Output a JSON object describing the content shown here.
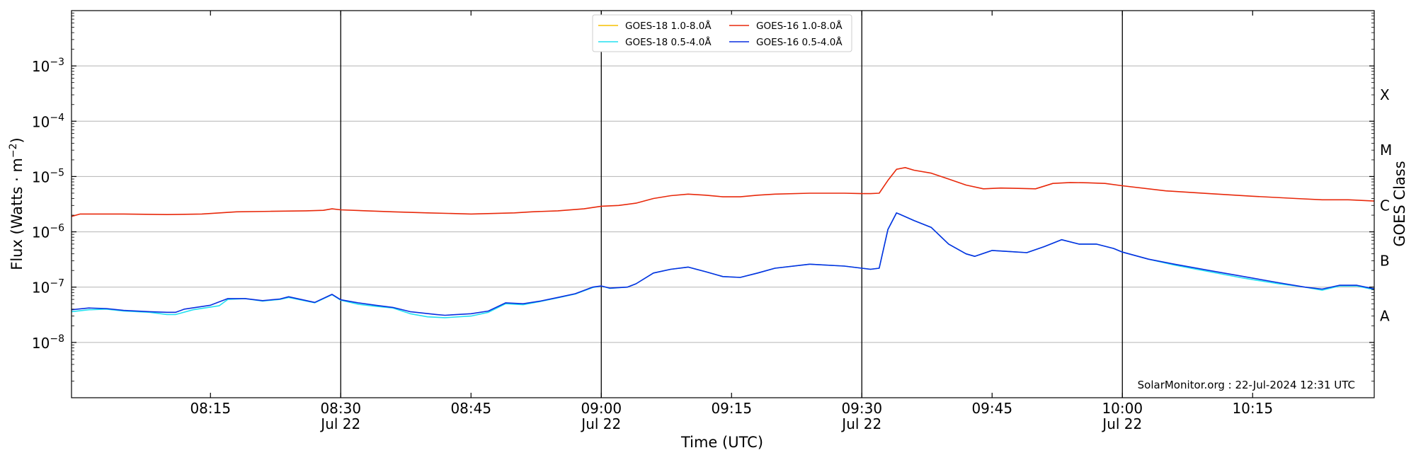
{
  "chart_data": {
    "type": "line",
    "title": "",
    "xlabel": "Time (UTC)",
    "ylabel": "Flux (Watts · m",
    "ylabel_sup": "−2",
    "ylabel_close": ")",
    "y2label": "GOES Class",
    "yscale": "log",
    "xlim": [
      "07:59",
      "10:29"
    ],
    "ylim": [
      1e-09,
      0.01
    ],
    "grid": "horizontal at decades",
    "legend_placement": "top-center",
    "credit": "SolarMonitor.org : 22-Jul-2024 12:31 UTC",
    "y_ticks": [
      {
        "value": 1e-08,
        "base": "10",
        "exp": "−8"
      },
      {
        "value": 1e-07,
        "base": "10",
        "exp": "−7"
      },
      {
        "value": 1e-06,
        "base": "10",
        "exp": "−6"
      },
      {
        "value": 1e-05,
        "base": "10",
        "exp": "−5"
      },
      {
        "value": 0.0001,
        "base": "10",
        "exp": "−4"
      },
      {
        "value": 0.001,
        "base": "10",
        "exp": "−3"
      }
    ],
    "class_labels": [
      {
        "label": "A",
        "value": 3e-08
      },
      {
        "label": "B",
        "value": 3e-07
      },
      {
        "label": "C",
        "value": 3e-06
      },
      {
        "label": "M",
        "value": 3e-05
      },
      {
        "label": "X",
        "value": 0.0003
      }
    ],
    "x_ticks": [
      {
        "time": "08:15",
        "date": ""
      },
      {
        "time": "08:30",
        "date": "Jul 22"
      },
      {
        "time": "08:45",
        "date": ""
      },
      {
        "time": "09:00",
        "date": "Jul 22"
      },
      {
        "time": "09:15",
        "date": ""
      },
      {
        "time": "09:30",
        "date": "Jul 22"
      },
      {
        "time": "09:45",
        "date": ""
      },
      {
        "time": "10:00",
        "date": "Jul 22"
      },
      {
        "time": "10:15",
        "date": ""
      }
    ],
    "vlines": [
      "08:30",
      "09:00",
      "09:30",
      "10:00"
    ],
    "series": [
      {
        "name": "GOES-16 1.0-8.0Å",
        "color": "#e8290b",
        "points": [
          [
            "07:59",
            1.9e-06
          ],
          [
            "08:00",
            2.1e-06
          ],
          [
            "08:05",
            2.1e-06
          ],
          [
            "08:10",
            2.05e-06
          ],
          [
            "08:14",
            2.1e-06
          ],
          [
            "08:18",
            2.3e-06
          ],
          [
            "08:22",
            2.35e-06
          ],
          [
            "08:26",
            2.4e-06
          ],
          [
            "08:28",
            2.45e-06
          ],
          [
            "08:29",
            2.6e-06
          ],
          [
            "08:30",
            2.5e-06
          ],
          [
            "08:33",
            2.4e-06
          ],
          [
            "08:36",
            2.3e-06
          ],
          [
            "08:40",
            2.2e-06
          ],
          [
            "08:45",
            2.1e-06
          ],
          [
            "08:50",
            2.2e-06
          ],
          [
            "08:52",
            2.3e-06
          ],
          [
            "08:55",
            2.4e-06
          ],
          [
            "08:58",
            2.6e-06
          ],
          [
            "09:00",
            2.9e-06
          ],
          [
            "09:02",
            3e-06
          ],
          [
            "09:04",
            3.3e-06
          ],
          [
            "09:06",
            4e-06
          ],
          [
            "09:08",
            4.5e-06
          ],
          [
            "09:10",
            4.8e-06
          ],
          [
            "09:12",
            4.6e-06
          ],
          [
            "09:14",
            4.3e-06
          ],
          [
            "09:16",
            4.3e-06
          ],
          [
            "09:18",
            4.6e-06
          ],
          [
            "09:20",
            4.8e-06
          ],
          [
            "09:24",
            5e-06
          ],
          [
            "09:28",
            5e-06
          ],
          [
            "09:30",
            4.9e-06
          ],
          [
            "09:31",
            4.9e-06
          ],
          [
            "09:32",
            5e-06
          ],
          [
            "09:33",
            8.5e-06
          ],
          [
            "09:34",
            1.35e-05
          ],
          [
            "09:35",
            1.45e-05
          ],
          [
            "09:36",
            1.3e-05
          ],
          [
            "09:38",
            1.15e-05
          ],
          [
            "09:40",
            9e-06
          ],
          [
            "09:42",
            7e-06
          ],
          [
            "09:44",
            6e-06
          ],
          [
            "09:46",
            6.2e-06
          ],
          [
            "09:48",
            6.1e-06
          ],
          [
            "09:50",
            6e-06
          ],
          [
            "09:52",
            7.5e-06
          ],
          [
            "09:54",
            7.8e-06
          ],
          [
            "09:56",
            7.7e-06
          ],
          [
            "09:58",
            7.5e-06
          ],
          [
            "10:00",
            6.8e-06
          ],
          [
            "10:05",
            5.5e-06
          ],
          [
            "10:10",
            4.9e-06
          ],
          [
            "10:15",
            4.4e-06
          ],
          [
            "10:20",
            4e-06
          ],
          [
            "10:23",
            3.8e-06
          ],
          [
            "10:26",
            3.8e-06
          ],
          [
            "10:29",
            3.6e-06
          ]
        ]
      },
      {
        "name": "GOES-18 0.5-4.0Å",
        "color": "#22e0f0",
        "points": [
          [
            "07:59",
            3.6e-08
          ],
          [
            "08:01",
            3.9e-08
          ],
          [
            "08:03",
            4e-08
          ],
          [
            "08:05",
            3.7e-08
          ],
          [
            "08:08",
            3.5e-08
          ],
          [
            "08:10",
            3.2e-08
          ],
          [
            "08:11",
            3.2e-08
          ],
          [
            "08:13",
            3.9e-08
          ],
          [
            "08:16",
            4.6e-08
          ],
          [
            "08:17",
            6e-08
          ],
          [
            "08:19",
            6.2e-08
          ],
          [
            "08:21",
            5.6e-08
          ],
          [
            "08:23",
            6e-08
          ],
          [
            "08:24",
            6.5e-08
          ],
          [
            "08:27",
            5.2e-08
          ],
          [
            "08:29",
            7.3e-08
          ],
          [
            "08:30",
            5.8e-08
          ],
          [
            "08:32",
            4.9e-08
          ],
          [
            "08:34",
            4.5e-08
          ],
          [
            "08:36",
            4.2e-08
          ],
          [
            "08:38",
            3.3e-08
          ],
          [
            "08:40",
            2.9e-08
          ],
          [
            "08:42",
            2.8e-08
          ],
          [
            "08:45",
            3e-08
          ],
          [
            "08:47",
            3.5e-08
          ],
          [
            "08:49",
            5e-08
          ],
          [
            "08:51",
            4.8e-08
          ],
          [
            "08:53",
            5.5e-08
          ],
          [
            "08:55",
            6.4e-08
          ],
          [
            "08:57",
            7.5e-08
          ],
          [
            "08:59",
            9.8e-08
          ],
          [
            "09:00",
            1.05e-07
          ],
          [
            "09:01",
            9.5e-08
          ],
          [
            "09:03",
            1e-07
          ],
          [
            "09:04",
            1.15e-07
          ],
          [
            "09:06",
            1.8e-07
          ],
          [
            "09:08",
            2.1e-07
          ],
          [
            "09:10",
            2.3e-07
          ],
          [
            "09:12",
            1.9e-07
          ],
          [
            "09:14",
            1.55e-07
          ],
          [
            "09:16",
            1.5e-07
          ],
          [
            "09:18",
            1.8e-07
          ],
          [
            "09:20",
            2.2e-07
          ],
          [
            "09:24",
            2.6e-07
          ],
          [
            "09:28",
            2.4e-07
          ],
          [
            "09:31",
            2.1e-07
          ],
          [
            "09:32",
            2.2e-07
          ],
          [
            "09:33",
            1.1e-06
          ],
          [
            "09:34",
            2.2e-06
          ],
          [
            "09:36",
            1.6e-06
          ],
          [
            "09:38",
            1.2e-06
          ],
          [
            "09:40",
            6e-07
          ],
          [
            "09:42",
            4e-07
          ],
          [
            "09:43",
            3.6e-07
          ],
          [
            "09:45",
            4.6e-07
          ],
          [
            "09:47",
            4.4e-07
          ],
          [
            "09:49",
            4.2e-07
          ],
          [
            "09:51",
            5.4e-07
          ],
          [
            "09:53",
            7.2e-07
          ],
          [
            "09:55",
            6e-07
          ],
          [
            "09:57",
            6e-07
          ],
          [
            "09:59",
            5e-07
          ],
          [
            "10:00",
            4.3e-07
          ],
          [
            "10:03",
            3.2e-07
          ],
          [
            "10:06",
            2.5e-07
          ],
          [
            "10:10",
            1.9e-07
          ],
          [
            "10:14",
            1.45e-07
          ],
          [
            "10:18",
            1.15e-07
          ],
          [
            "10:21",
            1e-07
          ],
          [
            "10:23",
            8.8e-08
          ],
          [
            "10:25",
            1.05e-07
          ],
          [
            "10:27",
            1.05e-07
          ],
          [
            "10:29",
            9e-08
          ]
        ]
      },
      {
        "name": "GOES-16 0.5-4.0Å",
        "color": "#0a2fe0",
        "points": [
          [
            "07:59",
            3.9e-08
          ],
          [
            "08:01",
            4.2e-08
          ],
          [
            "08:03",
            4.1e-08
          ],
          [
            "08:05",
            3.8e-08
          ],
          [
            "08:08",
            3.6e-08
          ],
          [
            "08:10",
            3.5e-08
          ],
          [
            "08:11",
            3.5e-08
          ],
          [
            "08:12",
            4e-08
          ],
          [
            "08:15",
            4.7e-08
          ],
          [
            "08:17",
            6.2e-08
          ],
          [
            "08:19",
            6.2e-08
          ],
          [
            "08:21",
            5.7e-08
          ],
          [
            "08:23",
            6.1e-08
          ],
          [
            "08:24",
            6.7e-08
          ],
          [
            "08:27",
            5.3e-08
          ],
          [
            "08:29",
            7.4e-08
          ],
          [
            "08:30",
            5.9e-08
          ],
          [
            "08:32",
            5.2e-08
          ],
          [
            "08:34",
            4.7e-08
          ],
          [
            "08:36",
            4.3e-08
          ],
          [
            "08:38",
            3.6e-08
          ],
          [
            "08:41",
            3.2e-08
          ],
          [
            "08:42",
            3.1e-08
          ],
          [
            "08:45",
            3.3e-08
          ],
          [
            "08:47",
            3.7e-08
          ],
          [
            "08:49",
            5.2e-08
          ],
          [
            "08:51",
            5e-08
          ],
          [
            "08:53",
            5.6e-08
          ],
          [
            "08:55",
            6.5e-08
          ],
          [
            "08:57",
            7.6e-08
          ],
          [
            "08:59",
            1e-07
          ],
          [
            "09:00",
            1.05e-07
          ],
          [
            "09:01",
            9.6e-08
          ],
          [
            "09:03",
            1e-07
          ],
          [
            "09:04",
            1.15e-07
          ],
          [
            "09:06",
            1.8e-07
          ],
          [
            "09:08",
            2.1e-07
          ],
          [
            "09:10",
            2.3e-07
          ],
          [
            "09:12",
            1.9e-07
          ],
          [
            "09:14",
            1.55e-07
          ],
          [
            "09:16",
            1.5e-07
          ],
          [
            "09:18",
            1.8e-07
          ],
          [
            "09:20",
            2.2e-07
          ],
          [
            "09:24",
            2.6e-07
          ],
          [
            "09:28",
            2.4e-07
          ],
          [
            "09:31",
            2.1e-07
          ],
          [
            "09:32",
            2.2e-07
          ],
          [
            "09:33",
            1.1e-06
          ],
          [
            "09:34",
            2.2e-06
          ],
          [
            "09:36",
            1.6e-06
          ],
          [
            "09:38",
            1.2e-06
          ],
          [
            "09:40",
            6e-07
          ],
          [
            "09:42",
            4e-07
          ],
          [
            "09:43",
            3.6e-07
          ],
          [
            "09:45",
            4.6e-07
          ],
          [
            "09:47",
            4.4e-07
          ],
          [
            "09:49",
            4.2e-07
          ],
          [
            "09:51",
            5.4e-07
          ],
          [
            "09:53",
            7.2e-07
          ],
          [
            "09:55",
            6e-07
          ],
          [
            "09:57",
            6e-07
          ],
          [
            "09:59",
            5e-07
          ],
          [
            "10:00",
            4.3e-07
          ],
          [
            "10:03",
            3.2e-07
          ],
          [
            "10:06",
            2.6e-07
          ],
          [
            "10:10",
            2e-07
          ],
          [
            "10:14",
            1.55e-07
          ],
          [
            "10:18",
            1.2e-07
          ],
          [
            "10:21",
            1e-07
          ],
          [
            "10:23",
            9.2e-08
          ],
          [
            "10:25",
            1.08e-07
          ],
          [
            "10:27",
            1.08e-07
          ],
          [
            "10:29",
            9.3e-08
          ]
        ]
      },
      {
        "name": "GOES-18 1.0-8.0Å",
        "color": "#f6c000",
        "points": []
      }
    ],
    "legend": [
      {
        "name": "GOES-18 1.0-8.0Å",
        "color": "#f6c000"
      },
      {
        "name": "GOES-18 0.5-4.0Å",
        "color": "#22e0f0"
      },
      {
        "name": "GOES-16 1.0-8.0Å",
        "color": "#e8290b"
      },
      {
        "name": "GOES-16 0.5-4.0Å",
        "color": "#0a2fe0"
      }
    ]
  }
}
